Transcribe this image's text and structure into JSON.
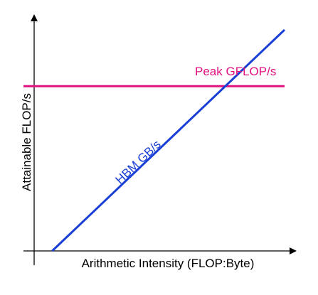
{
  "chart_data": {
    "type": "line",
    "title": "",
    "xlabel": "Arithmetic Intensity (FLOP:Byte)",
    "ylabel": "Attainable FLOP/s",
    "grid": false,
    "legend": "none",
    "series": [
      {
        "name": "Peak GFLOP/s",
        "color": "#e0117f",
        "x": [
          0.0,
          1.0
        ],
        "y": [
          0.76,
          0.76
        ]
      },
      {
        "name": "HBM GB/s",
        "color": "#1a3fd6",
        "x": [
          0.11,
          1.0
        ],
        "y": [
          0.0,
          1.02
        ]
      }
    ]
  }
}
